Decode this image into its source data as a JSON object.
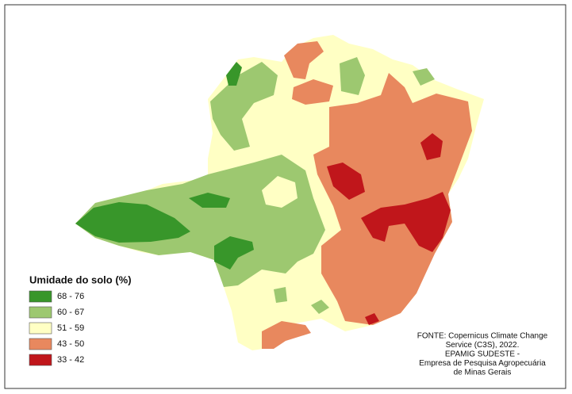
{
  "legend": {
    "title": "Umidade do solo (%)",
    "items": [
      {
        "label": "68 - 76",
        "color": "#38962a"
      },
      {
        "label": "60 - 67",
        "color": "#9dc870"
      },
      {
        "label": "51 - 59",
        "color": "#ffffc4"
      },
      {
        "label": "43 - 50",
        "color": "#e8885e"
      },
      {
        "label": "33 - 42",
        "color": "#c0161b"
      }
    ]
  },
  "source": {
    "lines": [
      "FONTE: Copernicus Climate Change",
      "Service (C3S), 2022.",
      "EPAMIG SUDESTE -",
      "Empresa de Pesquisa Agropecuária",
      "de Minas Gerais"
    ]
  }
}
